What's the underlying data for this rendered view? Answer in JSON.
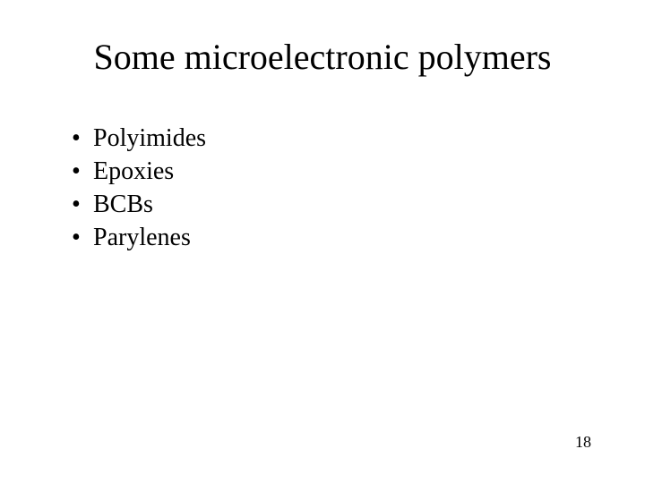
{
  "slide": {
    "title": "Some microelectronic polymers",
    "bullets": [
      "Polyimides",
      "Epoxies",
      "BCBs",
      "Parylenes"
    ],
    "page_number": "18",
    "title_fontsize": 40,
    "body_fontsize": 28,
    "pagenum_fontsize": 18,
    "text_color": "#000000",
    "background_color": "#ffffff",
    "font_family": "Times New Roman"
  }
}
